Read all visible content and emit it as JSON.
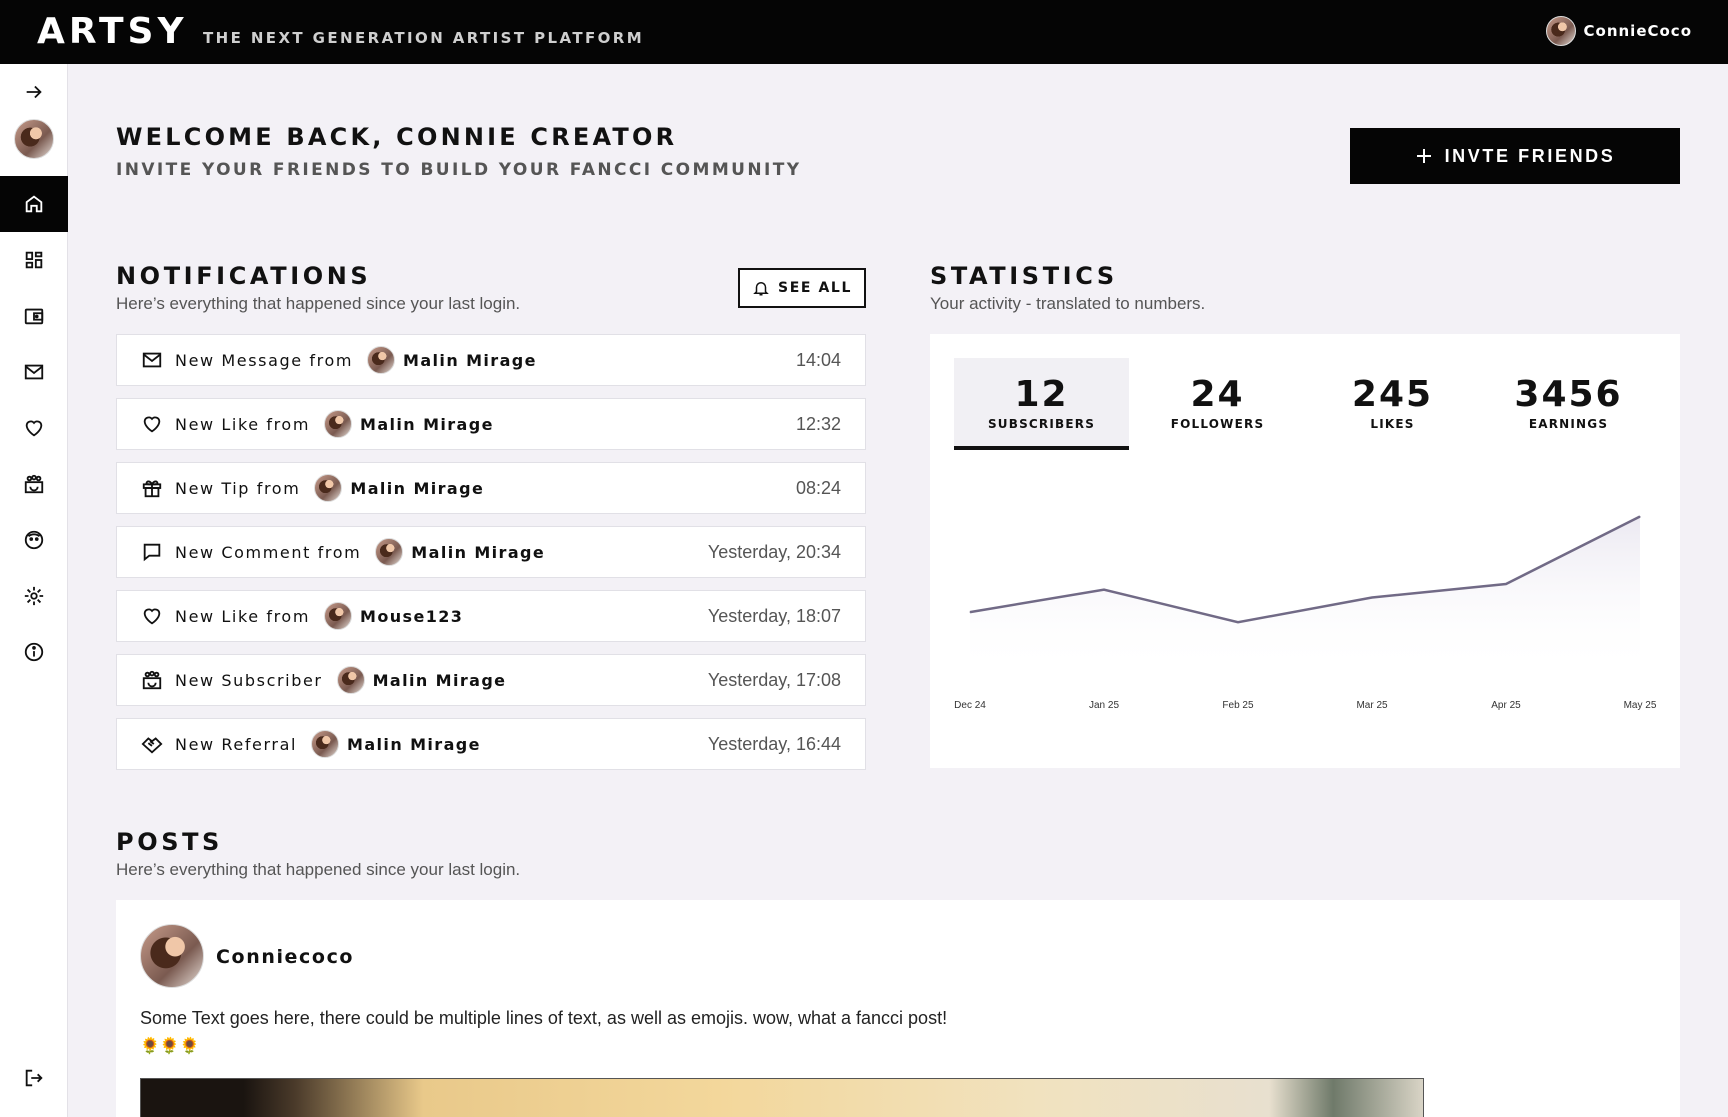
{
  "header": {
    "logo": "ARTSY",
    "tagline": "THE NEXT GENERATION ARTIST PLATFORM",
    "username": "ConnieCoco"
  },
  "sidebar": {
    "items": [
      {
        "name": "home",
        "icon": "home-icon",
        "active": true
      },
      {
        "name": "dashboard",
        "icon": "dashboard-icon"
      },
      {
        "name": "wallet",
        "icon": "wallet-icon"
      },
      {
        "name": "messages",
        "icon": "mail-icon"
      },
      {
        "name": "likes",
        "icon": "heart-icon"
      },
      {
        "name": "subscribers",
        "icon": "community-icon"
      },
      {
        "name": "face",
        "icon": "face-icon"
      },
      {
        "name": "settings",
        "icon": "gear-icon"
      },
      {
        "name": "info",
        "icon": "info-icon"
      }
    ]
  },
  "welcome": {
    "title": "WELCOME BACK, CONNIE CREATOR",
    "subtitle": "INVITE YOUR FRIENDS TO BUILD YOUR FANCCI COMMUNITY",
    "invite_label": "INVTE FRIENDS"
  },
  "notifications": {
    "title": "NOTIFICATIONS",
    "subtitle": "Here’s everything that happened since your last login.",
    "see_all": "SEE ALL",
    "items": [
      {
        "icon": "mail-icon",
        "text": "New Message from",
        "user": "Malin Mirage",
        "time": "14:04"
      },
      {
        "icon": "heart-icon",
        "text": "New Like from",
        "user": "Malin Mirage",
        "time": "12:32"
      },
      {
        "icon": "gift-icon",
        "text": "New Tip from",
        "user": "Malin Mirage",
        "time": "08:24"
      },
      {
        "icon": "comment-icon",
        "text": "New Comment from",
        "user": "Malin Mirage",
        "time": "Yesterday, 20:34"
      },
      {
        "icon": "heart-icon",
        "text": "New Like from",
        "user": "Mouse123",
        "time": "Yesterday, 18:07"
      },
      {
        "icon": "community-icon",
        "text": "New Subscriber",
        "user": "Malin Mirage",
        "time": "Yesterday, 17:08"
      },
      {
        "icon": "handshake-icon",
        "text": "New Referral",
        "user": "Malin Mirage",
        "time": "Yesterday, 16:44"
      }
    ]
  },
  "statistics": {
    "title": "STATISTICS",
    "subtitle": "Your activity - translated to numbers.",
    "tabs": [
      {
        "value": "12",
        "label": "SUBSCRIBERS",
        "active": true
      },
      {
        "value": "24",
        "label": "FOLLOWERS"
      },
      {
        "value": "245",
        "label": "LIKES"
      },
      {
        "value": "3456",
        "label": "EARNINGS"
      }
    ]
  },
  "chart_data": {
    "type": "area",
    "x": [
      "Dec 24",
      "Jan 25",
      "Feb 25",
      "Mar 25",
      "Apr 25",
      "May 25"
    ],
    "values": [
      5.5,
      7.5,
      4.6,
      6.8,
      8.0,
      14.0
    ],
    "ylim": [
      0,
      16
    ],
    "line_color": "#716a86"
  },
  "posts": {
    "title": "POSTS",
    "subtitle": "Here’s everything that happened since your last login.",
    "items": [
      {
        "user": "Conniecoco",
        "text": "Some Text goes here, there could be multiple lines of text, as well as emojis. wow, what a fancci post!",
        "emoji": "🌻🌻🌻"
      }
    ]
  }
}
